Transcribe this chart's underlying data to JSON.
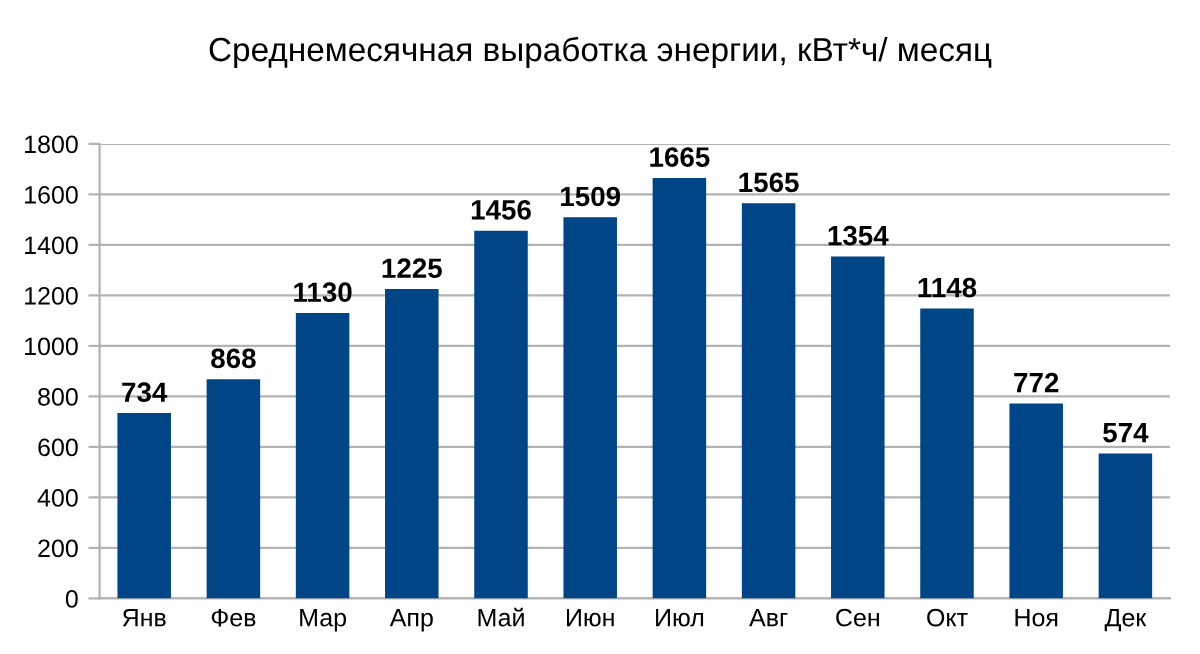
{
  "chart_data": {
    "type": "bar",
    "title": "Среднемесячная выработка энергии, кВт*ч/ месяц",
    "categories": [
      "Янв",
      "Фев",
      "Мар",
      "Апр",
      "Май",
      "Июн",
      "Июл",
      "Авг",
      "Сен",
      "Окт",
      "Ноя",
      "Дек"
    ],
    "values": [
      734,
      868,
      1130,
      1225,
      1456,
      1509,
      1665,
      1565,
      1354,
      1148,
      772,
      574
    ],
    "color": "#004586",
    "ylim": [
      0,
      1800
    ],
    "yticks": [
      0,
      200,
      400,
      600,
      800,
      1000,
      1200,
      1400,
      1600,
      1800
    ],
    "grid": "y",
    "data_labels": true,
    "legend": false
  }
}
